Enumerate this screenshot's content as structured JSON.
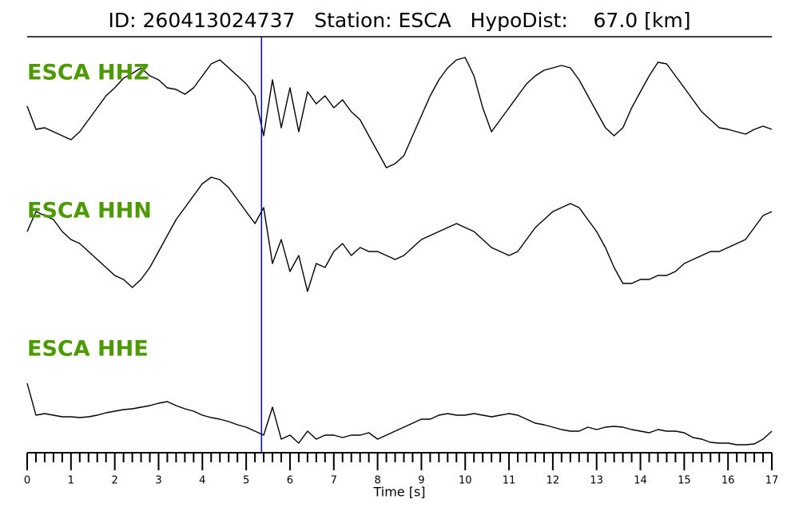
{
  "chart_data": {
    "type": "line",
    "title": "ID: 260413024737   Station: ESCA   HypoDist:    67.0 [km]",
    "xlabel": "Time [s]",
    "xlim": [
      0,
      17
    ],
    "xticks": [
      0,
      1,
      2,
      3,
      4,
      5,
      6,
      7,
      8,
      9,
      10,
      11,
      12,
      13,
      14,
      15,
      16,
      17
    ],
    "x": [
      0,
      0.2,
      0.4,
      0.6,
      0.8,
      1,
      1.2,
      1.4,
      1.6,
      1.8,
      2,
      2.2,
      2.4,
      2.6,
      2.8,
      3,
      3.2,
      3.4,
      3.6,
      3.8,
      4,
      4.2,
      4.4,
      4.6,
      4.8,
      5,
      5.2,
      5.4,
      5.6,
      5.8,
      6,
      6.2,
      6.4,
      6.6,
      6.8,
      7,
      7.2,
      7.4,
      7.6,
      7.8,
      8,
      8.2,
      8.4,
      8.6,
      8.8,
      9,
      9.2,
      9.4,
      9.6,
      9.8,
      10,
      10.2,
      10.4,
      10.6,
      10.8,
      11,
      11.2,
      11.4,
      11.6,
      11.8,
      12,
      12.2,
      12.4,
      12.6,
      12.8,
      13,
      13.2,
      13.4,
      13.6,
      13.8,
      14,
      14.2,
      14.4,
      14.6,
      14.8,
      15,
      15.2,
      15.4,
      15.6,
      15.8,
      16,
      16.2,
      16.4,
      16.6,
      16.8,
      17
    ],
    "label_color": "#4c9a00",
    "series": [
      {
        "name": "ESCA HHZ",
        "color": "#000000",
        "values": [
          7,
          -22,
          -20,
          -25,
          -30,
          -35,
          -25,
          -10,
          5,
          20,
          30,
          42,
          48,
          55,
          45,
          40,
          30,
          28,
          22,
          30,
          45,
          60,
          65,
          55,
          45,
          35,
          20,
          -30,
          40,
          -20,
          30,
          -25,
          25,
          10,
          20,
          5,
          15,
          0,
          -10,
          -30,
          -50,
          -70,
          -65,
          -55,
          -30,
          -5,
          20,
          40,
          55,
          65,
          68,
          45,
          5,
          -25,
          -10,
          5,
          20,
          35,
          45,
          52,
          55,
          58,
          55,
          40,
          20,
          0,
          -20,
          -30,
          -20,
          5,
          25,
          45,
          62,
          60,
          45,
          30,
          15,
          0,
          -10,
          -20,
          -22,
          -25,
          -28,
          -22,
          -18,
          -22
        ]
      },
      {
        "name": "ESCA HHN",
        "color": "#000000",
        "values": [
          0,
          25,
          20,
          15,
          0,
          -10,
          -15,
          -25,
          -35,
          -45,
          -55,
          -60,
          -70,
          -60,
          -45,
          -25,
          -5,
          15,
          30,
          45,
          60,
          68,
          65,
          55,
          40,
          25,
          10,
          30,
          -40,
          -10,
          -50,
          -30,
          -75,
          -40,
          -45,
          -25,
          -15,
          -30,
          -20,
          -25,
          -25,
          -30,
          -35,
          -30,
          -20,
          -10,
          -5,
          0,
          5,
          10,
          5,
          0,
          -10,
          -20,
          -25,
          -30,
          -25,
          -10,
          5,
          15,
          25,
          30,
          35,
          30,
          15,
          0,
          -20,
          -45,
          -65,
          -65,
          -60,
          -60,
          -55,
          -55,
          -50,
          -40,
          -35,
          -30,
          -25,
          -25,
          -20,
          -15,
          -10,
          5,
          20,
          25
        ]
      },
      {
        "name": "ESCA HHE",
        "color": "#000000",
        "values": [
          40,
          0,
          2,
          0,
          -2,
          -2,
          -3,
          -2,
          0,
          3,
          5,
          7,
          8,
          10,
          12,
          15,
          17,
          12,
          8,
          5,
          0,
          -3,
          -5,
          -8,
          -12,
          -15,
          -20,
          -25,
          10,
          -30,
          -25,
          -35,
          -20,
          -30,
          -25,
          -25,
          -28,
          -25,
          -25,
          -22,
          -30,
          -25,
          -20,
          -15,
          -10,
          -5,
          -5,
          0,
          2,
          0,
          0,
          2,
          0,
          -2,
          0,
          2,
          0,
          -5,
          -10,
          -12,
          -15,
          -18,
          -20,
          -20,
          -15,
          -18,
          -15,
          -14,
          -15,
          -18,
          -20,
          -22,
          -18,
          -20,
          -20,
          -22,
          -28,
          -30,
          -34,
          -35,
          -35,
          -37,
          -37,
          -36,
          -30,
          -20
        ]
      }
    ],
    "markers": [
      {
        "x": 5.35,
        "color": "#0000cc"
      }
    ]
  }
}
